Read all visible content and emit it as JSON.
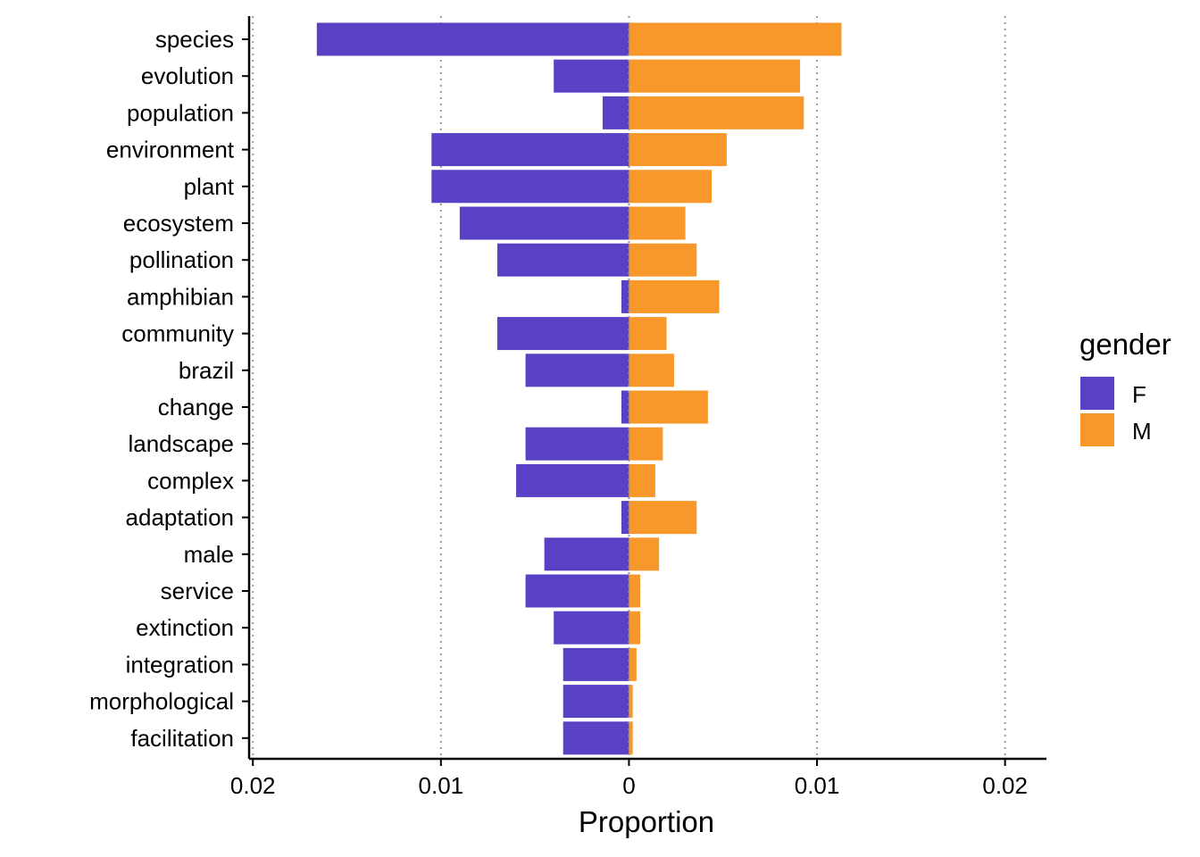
{
  "chart_data": {
    "type": "bar",
    "orientation": "horizontal-diverging",
    "title": "",
    "xlabel": "Proportion",
    "ylabel": "",
    "xlim": [
      -0.0202,
      0.0222
    ],
    "grid": "vertical-dotted",
    "legend_position": "right",
    "legend_title": "gender",
    "x_ticks": [
      {
        "value": -0.02,
        "label": "0.02"
      },
      {
        "value": -0.01,
        "label": "0.01"
      },
      {
        "value": 0,
        "label": "0"
      },
      {
        "value": 0.01,
        "label": "0.01"
      },
      {
        "value": 0.02,
        "label": "0.02"
      }
    ],
    "categories": [
      "species",
      "evolution",
      "population",
      "environment",
      "plant",
      "ecosystem",
      "pollination",
      "amphibian",
      "community",
      "brazil",
      "change",
      "landscape",
      "complex",
      "adaptation",
      "male",
      "service",
      "extinction",
      "integration",
      "morphological",
      "facilitation"
    ],
    "series": [
      {
        "name": "F",
        "color": "#5940C5",
        "values": [
          0.0166,
          0.004,
          0.0014,
          0.0105,
          0.0105,
          0.009,
          0.007,
          0.0004,
          0.007,
          0.0055,
          0.0004,
          0.0055,
          0.006,
          0.0004,
          0.0045,
          0.0055,
          0.004,
          0.0035,
          0.0035,
          0.0035
        ]
      },
      {
        "name": "M",
        "color": "#F8982B",
        "values": [
          0.0113,
          0.0091,
          0.0093,
          0.0052,
          0.0044,
          0.003,
          0.0036,
          0.0048,
          0.002,
          0.0024,
          0.0042,
          0.0018,
          0.0014,
          0.0036,
          0.0016,
          0.0006,
          0.0006,
          0.0004,
          0.0002,
          0.0002
        ]
      }
    ]
  }
}
